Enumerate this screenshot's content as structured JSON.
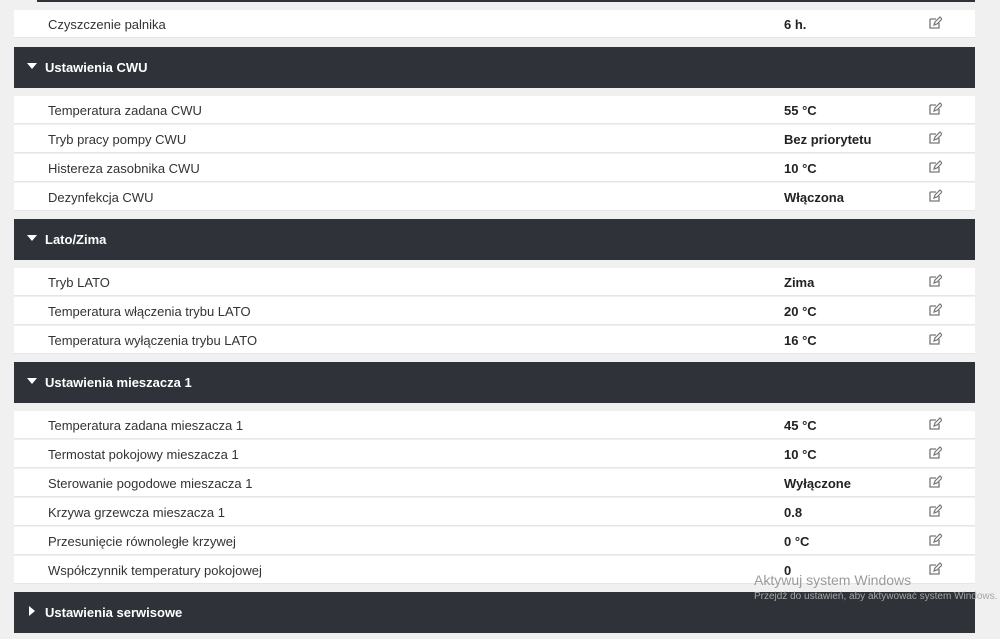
{
  "sections": [
    {
      "title": "",
      "rows": [
        {
          "label": "Czyszczenie palnika",
          "value": "6 h."
        }
      ]
    },
    {
      "title": "Ustawienia CWU",
      "rows": [
        {
          "label": "Temperatura zadana CWU",
          "value": "55 °C"
        },
        {
          "label": "Tryb pracy pompy CWU",
          "value": "Bez priorytetu"
        },
        {
          "label": "Histereza zasobnika CWU",
          "value": "10 °C"
        },
        {
          "label": "Dezynfekcja CWU",
          "value": "Włączona"
        }
      ]
    },
    {
      "title": "Lato/Zima",
      "rows": [
        {
          "label": "Tryb LATO",
          "value": "Zima"
        },
        {
          "label": "Temperatura włączenia trybu LATO",
          "value": "20 °C"
        },
        {
          "label": "Temperatura wyłączenia trybu LATO",
          "value": "16 °C"
        }
      ]
    },
    {
      "title": "Ustawienia mieszacza 1",
      "rows": [
        {
          "label": "Temperatura zadana mieszacza 1",
          "value": "45 °C"
        },
        {
          "label": "Termostat pokojowy mieszacza 1",
          "value": "10 °C"
        },
        {
          "label": "Sterowanie pogodowe mieszacza 1",
          "value": "Wyłączone"
        },
        {
          "label": "Krzywa grzewcza mieszacza 1",
          "value": "0.8"
        },
        {
          "label": "Przesunięcie równoległe krzywej",
          "value": "0 °C"
        },
        {
          "label": "Współczynnik temperatury pokojowej",
          "value": "0"
        }
      ]
    },
    {
      "title": "Ustawienia serwisowe",
      "rows": []
    }
  ],
  "watermark": {
    "line1": "Aktywuj system Windows",
    "line2": "Przejdź do ustawień, aby aktywować system Windows."
  },
  "icons": {
    "edit": "edit-icon",
    "expanded": "caret-down-icon",
    "collapsed": "caret-right-icon"
  }
}
